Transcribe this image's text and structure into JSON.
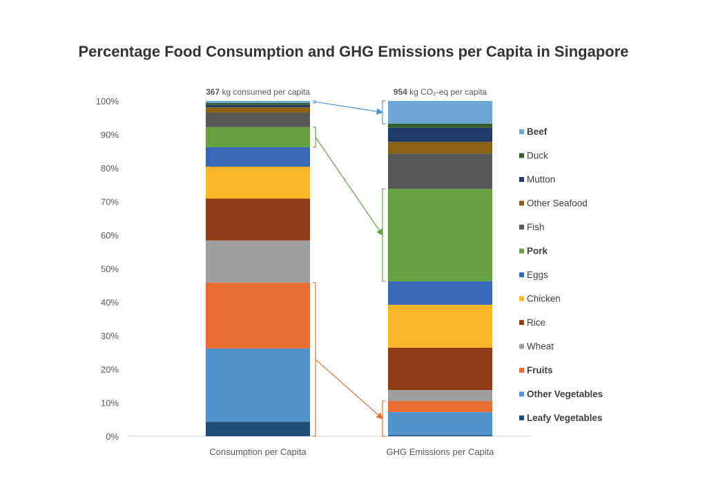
{
  "chart_data": {
    "type": "bar",
    "stacked": true,
    "title": "Percentage Food Consumption and GHG Emissions per Capita in Singapore",
    "categories": [
      "Consumption per Capita",
      "GHG Emissions per Capita"
    ],
    "bar_annotations": [
      {
        "value": "367",
        "text": "kg consumed per capita"
      },
      {
        "value": "954",
        "text": "kg CO₂-eq per capita"
      }
    ],
    "ylim": [
      0,
      100
    ],
    "yticks": [
      "0%",
      "10%",
      "20%",
      "30%",
      "40%",
      "50%",
      "60%",
      "70%",
      "80%",
      "90%",
      "100%"
    ],
    "grid": false,
    "legend_position": "right",
    "series": [
      {
        "name": "Leafy Vegetables",
        "color": "#1f4e79",
        "bold": true,
        "values": [
          4.3,
          0.3
        ]
      },
      {
        "name": "Other Vegetables",
        "color": "#4f92cd",
        "bold": true,
        "values": [
          21.9,
          6.9
        ]
      },
      {
        "name": "Fruits",
        "color": "#e76f34",
        "bold": true,
        "values": [
          19.6,
          3.3
        ]
      },
      {
        "name": "Wheat",
        "color": "#9e9e9e",
        "bold": false,
        "values": [
          12.6,
          3.3
        ]
      },
      {
        "name": "Rice",
        "color": "#923c17",
        "bold": false,
        "values": [
          12.5,
          12.6
        ]
      },
      {
        "name": "Chicken",
        "color": "#fcb62a",
        "bold": false,
        "values": [
          9.5,
          12.8
        ]
      },
      {
        "name": "Eggs",
        "color": "#3a68b8",
        "bold": false,
        "values": [
          5.8,
          7.0
        ]
      },
      {
        "name": "Pork",
        "color": "#67a142",
        "bold": true,
        "values": [
          6.0,
          27.6
        ]
      },
      {
        "name": "Fish",
        "color": "#575757",
        "bold": false,
        "values": [
          4.3,
          10.5
        ]
      },
      {
        "name": "Other Seafood",
        "color": "#8b6215",
        "bold": false,
        "values": [
          1.6,
          3.5
        ]
      },
      {
        "name": "Mutton",
        "color": "#213b69",
        "bold": false,
        "values": [
          0.7,
          4.2
        ]
      },
      {
        "name": "Duck",
        "color": "#355e2a",
        "bold": false,
        "values": [
          0.6,
          1.2
        ]
      },
      {
        "name": "Beef",
        "color": "#6fa6d8",
        "bold": true,
        "values": [
          0.6,
          6.8
        ]
      }
    ],
    "highlight_links": [
      {
        "series": [
          "Beef"
        ],
        "color": "#4f92cd"
      },
      {
        "series": [
          "Pork"
        ],
        "color": "#67a142"
      },
      {
        "series": [
          "Leafy Vegetables",
          "Other Vegetables",
          "Fruits"
        ],
        "color": "#e76f34"
      }
    ]
  }
}
